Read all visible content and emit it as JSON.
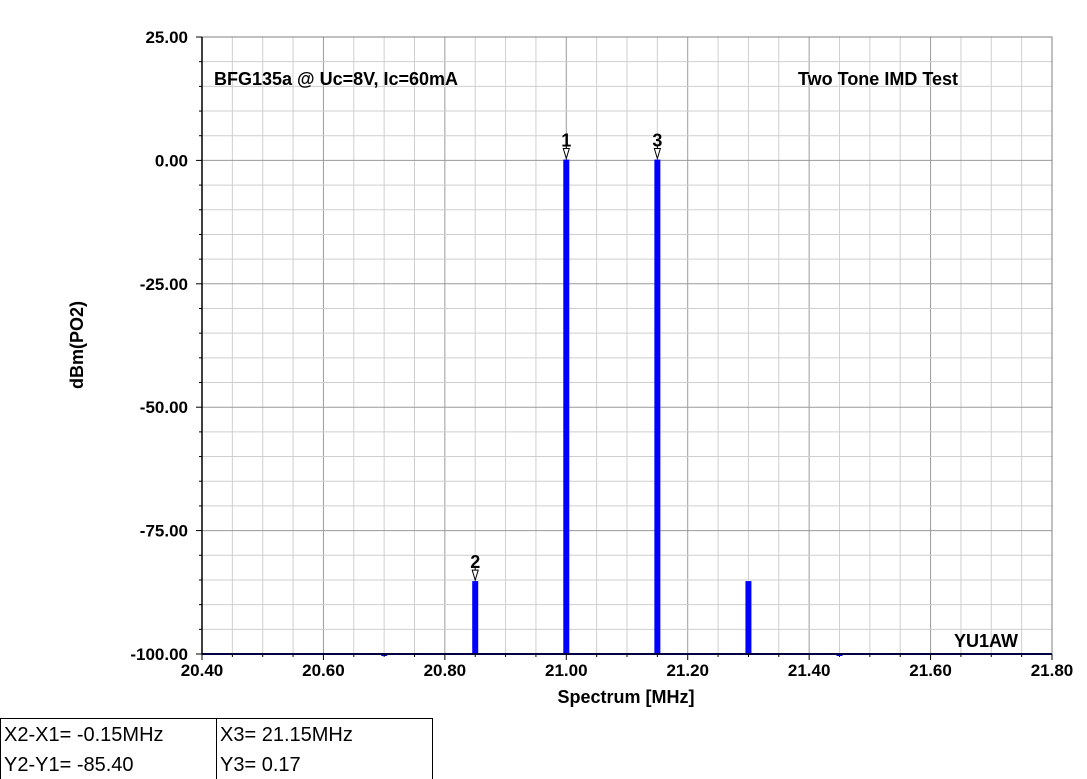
{
  "chart_data": {
    "type": "bar",
    "title_left": "BFG135a @ Uc=8V, Ic=60mA",
    "title_right": "Two Tone IMD Test",
    "watermark": "YU1AW",
    "xlabel": "Spectrum [MHz]",
    "ylabel": "dBm(PO2)",
    "xlim": [
      20.4,
      21.8
    ],
    "ylim": [
      -100,
      25
    ],
    "x_ticks": [
      "20.40",
      "20.60",
      "20.80",
      "21.00",
      "21.20",
      "21.40",
      "21.60",
      "21.80"
    ],
    "y_ticks": [
      "25.00",
      "0.00",
      "-25.00",
      "-50.00",
      "-75.00",
      "-100.00"
    ],
    "grid": true,
    "bar_color": "#0000ff",
    "series": [
      {
        "x": [
          20.7,
          20.85,
          21.0,
          21.15,
          21.3,
          21.45
        ],
        "values": [
          -100,
          -85.23,
          0.17,
          0.17,
          -85.23,
          -100
        ]
      }
    ],
    "markers": [
      {
        "label": "1",
        "x": 21.0,
        "y": 0.17
      },
      {
        "label": "2",
        "x": 20.85,
        "y": -85.23
      },
      {
        "label": "3",
        "x": 21.15,
        "y": 0.17
      }
    ]
  },
  "readout": {
    "dx": "X2-X1= -0.15MHz",
    "dy": "Y2-Y1= -85.40",
    "x3": "X3= 21.15MHz",
    "y3": "Y3= 0.17"
  }
}
